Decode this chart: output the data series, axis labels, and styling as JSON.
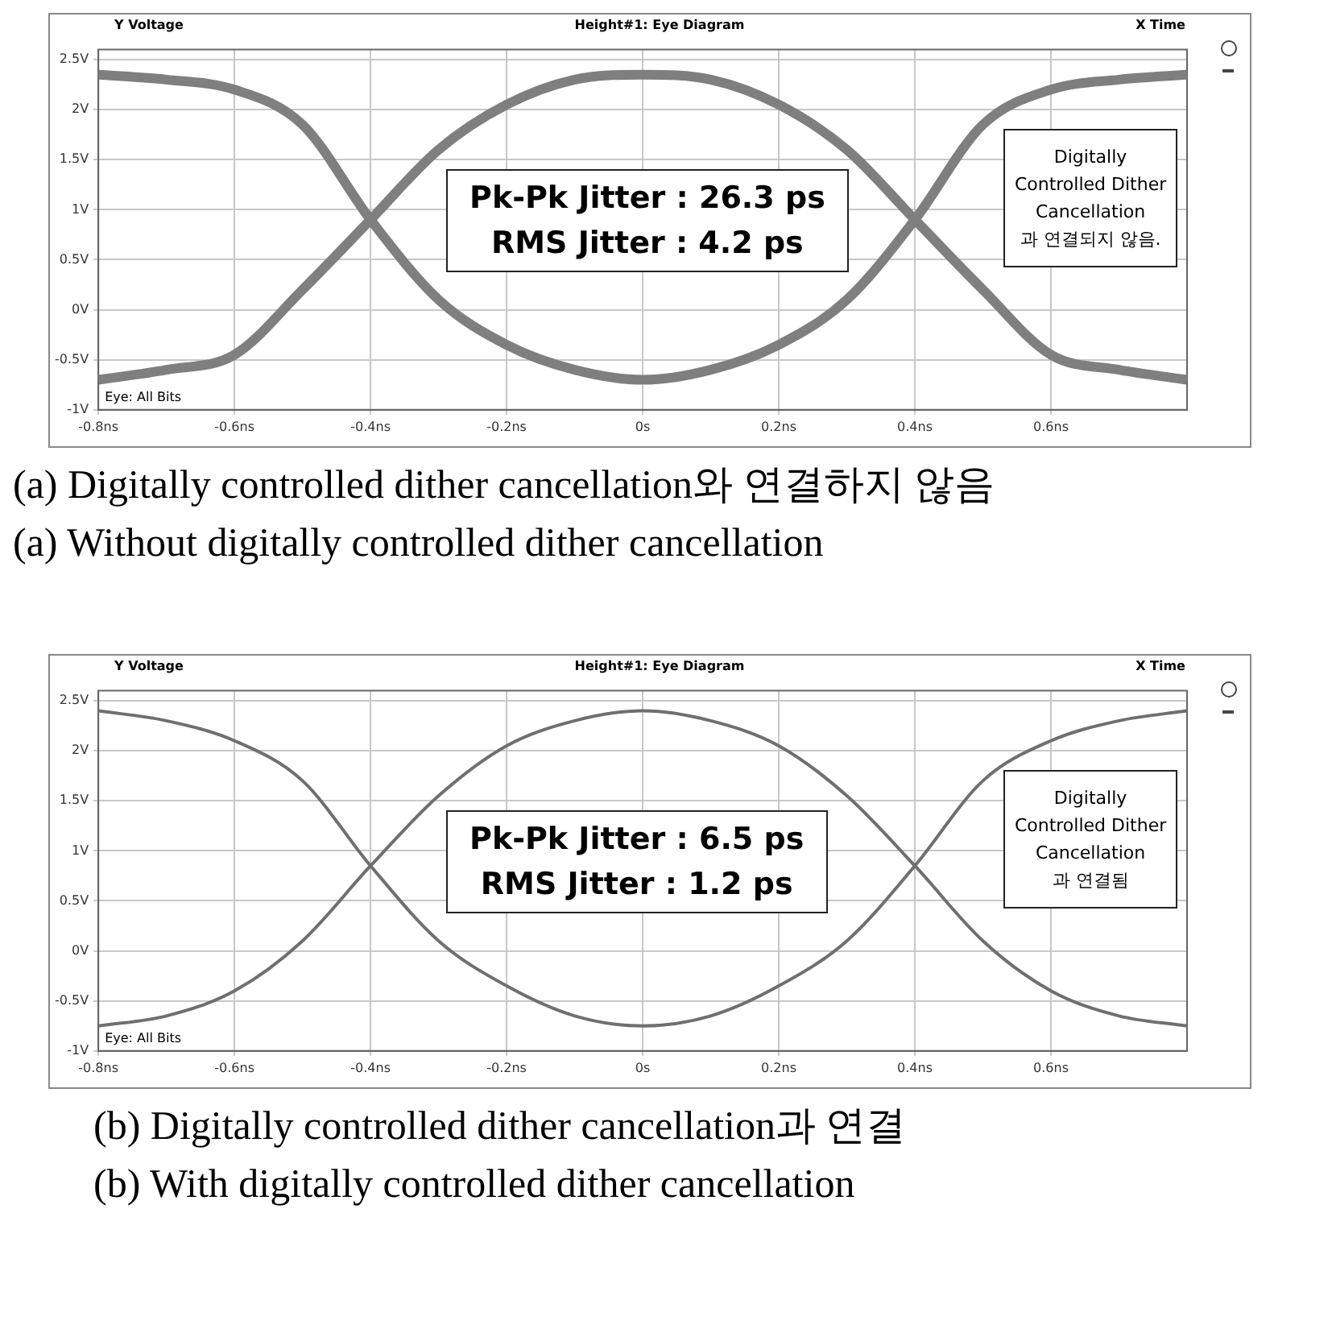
{
  "chart_data": [
    {
      "type": "line",
      "title": "Height#1: Eye Diagram",
      "xlabel": "X Time",
      "ylabel": "Y Voltage",
      "x": [
        -0.8,
        -0.7,
        -0.6,
        -0.5,
        -0.4,
        -0.3,
        -0.2,
        -0.1,
        0,
        0.1,
        0.2,
        0.3,
        0.4,
        0.5,
        0.6,
        0.7,
        0.8
      ],
      "series": [
        {
          "color": "#7f7f7f",
          "values": [
            2.35,
            2.3,
            2.2,
            1.85,
            0.9,
            0.1,
            -0.35,
            -0.6,
            -0.7,
            -0.6,
            -0.35,
            0.1,
            0.9,
            1.85,
            2.2,
            2.3,
            2.35
          ]
        },
        {
          "color": "#7f7f7f",
          "values": [
            -0.7,
            -0.6,
            -0.45,
            0.2,
            0.9,
            1.6,
            2.05,
            2.3,
            2.35,
            2.3,
            2.05,
            1.6,
            0.9,
            0.2,
            -0.45,
            -0.6,
            -0.7
          ]
        }
      ],
      "xlim": [
        -0.8,
        0.8
      ],
      "ylim": [
        -1,
        2.6
      ],
      "xticks": [
        {
          "value": -0.8,
          "label": "-0.8ns"
        },
        {
          "value": -0.6,
          "label": "-0.6ns"
        },
        {
          "value": -0.4,
          "label": "-0.4ns"
        },
        {
          "value": -0.2,
          "label": "-0.2ns"
        },
        {
          "value": 0,
          "label": "0s"
        },
        {
          "value": 0.2,
          "label": "0.2ns"
        },
        {
          "value": 0.4,
          "label": "0.4ns"
        },
        {
          "value": 0.6,
          "label": "0.6ns"
        }
      ],
      "yticks": [
        {
          "value": -1,
          "label": "-1V"
        },
        {
          "value": -0.5,
          "label": "-0.5V"
        },
        {
          "value": 0,
          "label": "0V"
        },
        {
          "value": 0.5,
          "label": "0.5V"
        },
        {
          "value": 1,
          "label": "1V"
        },
        {
          "value": 1.5,
          "label": "1.5V"
        },
        {
          "value": 2,
          "label": "2V"
        },
        {
          "value": 2.5,
          "label": "2.5V"
        }
      ],
      "grid": true,
      "legend": false,
      "marker": "none",
      "line_style": "solid",
      "annotations": [
        "Eye: All Bits",
        "Pk-Pk Jitter : 26.3 ps\nRMS Jitter : 4.2 ps",
        "Digitally\nControlled Dither\nCancellation\n과 연결되지 않음.",
        "(a) Digitally controlled dither cancellation와 연결하지 않음",
        "(a) Without digitally controlled dither cancellation"
      ]
    },
    {
      "type": "line",
      "title": "Height#1: Eye Diagram",
      "xlabel": "X Time",
      "ylabel": "Y Voltage",
      "x": [
        -0.8,
        -0.7,
        -0.6,
        -0.5,
        -0.4,
        -0.3,
        -0.2,
        -0.1,
        0,
        0.1,
        0.2,
        0.3,
        0.4,
        0.5,
        0.6,
        0.7,
        0.8
      ],
      "series": [
        {
          "color": "#6f6f6f",
          "values": [
            2.4,
            2.3,
            2.1,
            1.7,
            0.85,
            0.1,
            -0.35,
            -0.65,
            -0.75,
            -0.65,
            -0.35,
            0.1,
            0.85,
            1.7,
            2.1,
            2.3,
            2.4
          ]
        },
        {
          "color": "#6f6f6f",
          "values": [
            -0.75,
            -0.65,
            -0.4,
            0.1,
            0.85,
            1.55,
            2.05,
            2.3,
            2.4,
            2.3,
            2.05,
            1.55,
            0.85,
            0.1,
            -0.4,
            -0.65,
            -0.75
          ]
        }
      ],
      "xlim": [
        -0.8,
        0.8
      ],
      "ylim": [
        -1,
        2.6
      ],
      "xticks": [
        {
          "value": -0.8,
          "label": "-0.8ns"
        },
        {
          "value": -0.6,
          "label": "-0.6ns"
        },
        {
          "value": -0.4,
          "label": "-0.4ns"
        },
        {
          "value": -0.2,
          "label": "-0.2ns"
        },
        {
          "value": 0,
          "label": "0s"
        },
        {
          "value": 0.2,
          "label": "0.2ns"
        },
        {
          "value": 0.4,
          "label": "0.4ns"
        },
        {
          "value": 0.6,
          "label": "0.6ns"
        }
      ],
      "yticks": [
        {
          "value": -1,
          "label": "-1V"
        },
        {
          "value": -0.5,
          "label": "-0.5V"
        },
        {
          "value": 0,
          "label": "0V"
        },
        {
          "value": 0.5,
          "label": "0.5V"
        },
        {
          "value": 1,
          "label": "1V"
        },
        {
          "value": 1.5,
          "label": "1.5V"
        },
        {
          "value": 2,
          "label": "2V"
        },
        {
          "value": 2.5,
          "label": "2.5V"
        }
      ],
      "grid": true,
      "legend": false,
      "marker": "none",
      "line_style": "solid",
      "annotations": [
        "Eye: All Bits",
        "Pk-Pk Jitter : 6.5 ps\nRMS Jitter : 1.2 ps",
        "Digitally\nControlled Dither\nCancellation\n과 연결됨",
        "(b) Digitally controlled dither cancellation과 연결",
        "(b) With digitally controlled dither cancellation"
      ]
    }
  ]
}
